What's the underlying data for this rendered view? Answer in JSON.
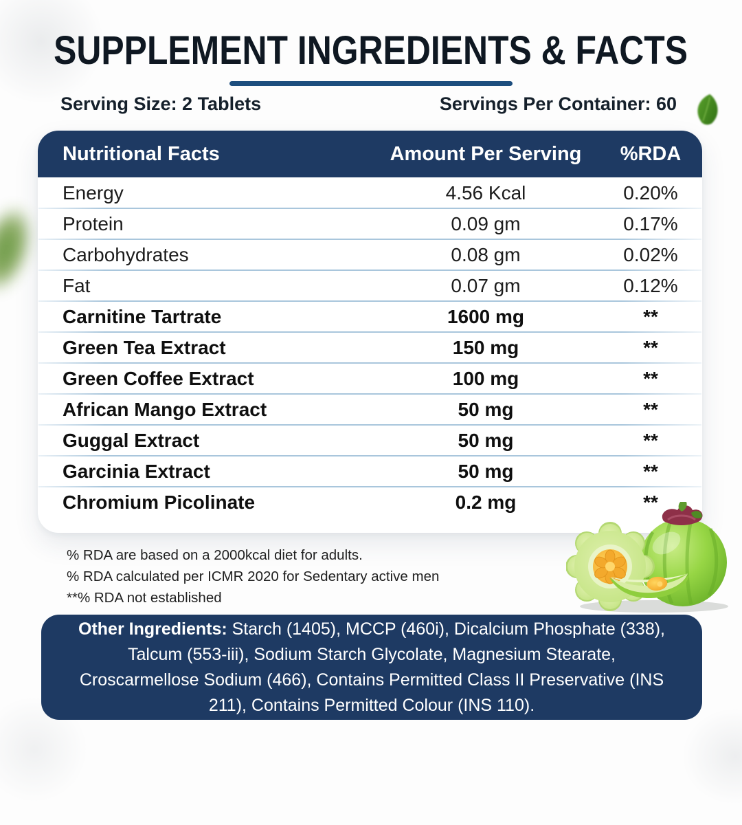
{
  "page": {
    "title": "SUPPLEMENT INGREDIENTS & FACTS",
    "serving_size": "Serving Size: 2 Tablets",
    "servings_per_container": "Servings Per Container: 60"
  },
  "table": {
    "headers": [
      "Nutritional Facts",
      "Amount Per Serving",
      "%RDA"
    ],
    "rows": [
      {
        "name": "Energy",
        "amount": "4.56 Kcal",
        "rda": "0.20%",
        "emphasis": false
      },
      {
        "name": "Protein",
        "amount": "0.09 gm",
        "rda": "0.17%",
        "emphasis": false
      },
      {
        "name": "Carbohydrates",
        "amount": "0.08 gm",
        "rda": "0.02%",
        "emphasis": false
      },
      {
        "name": "Fat",
        "amount": "0.07 gm",
        "rda": "0.12%",
        "emphasis": false
      },
      {
        "name": "Carnitine Tartrate",
        "amount": "1600 mg",
        "rda": "**",
        "emphasis": true
      },
      {
        "name": "Green Tea Extract",
        "amount": "150 mg",
        "rda": "**",
        "emphasis": true
      },
      {
        "name": "Green Coffee Extract",
        "amount": "100 mg",
        "rda": "**",
        "emphasis": true
      },
      {
        "name": "African Mango Extract",
        "amount": "50 mg",
        "rda": "**",
        "emphasis": true
      },
      {
        "name": "Guggal Extract",
        "amount": "50 mg",
        "rda": "**",
        "emphasis": true
      },
      {
        "name": "Garcinia Extract",
        "amount": "50 mg",
        "rda": "**",
        "emphasis": true
      },
      {
        "name": "Chromium Picolinate",
        "amount": "0.2 mg",
        "rda": "**",
        "emphasis": true
      }
    ]
  },
  "footnotes": [
    "% RDA are based on a 2000kcal diet for adults.",
    "% RDA calculated per ICMR 2020 for Sedentary active men",
    "**% RDA not established"
  ],
  "other_ingredients": {
    "label": "Other Ingredients:",
    "text": " Starch (1405), MCCP (460i), Dicalcium Phosphate (338), Talcum (553-iii), Sodium Starch Glycolate, Magnesium Stearate, Croscarmellose Sodium (466), Contains Permitted Class II Preservative (INS 211), Contains Permitted Colour (INS 110)."
  },
  "colors": {
    "primary_blue": "#1e3a63",
    "underline_blue": "#1d4e7e",
    "separator_blue": "#a9c6dc",
    "title_text": "#0f1822",
    "fruit_green": "#8ed23e",
    "fruit_flesh": "#c8e68a",
    "fruit_core_orange": "#f7b437"
  },
  "decor": {
    "fruit_image": "garcinia-cambogia-fruits",
    "leaves": [
      "blurred-leaf-left-edge",
      "small-leaf-top-right"
    ]
  }
}
